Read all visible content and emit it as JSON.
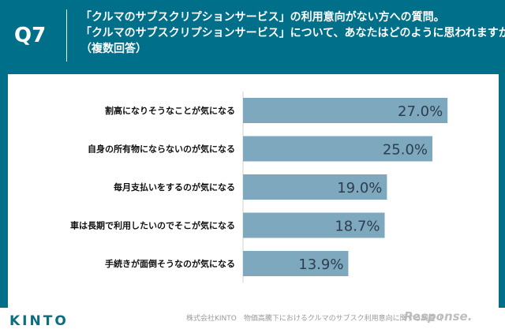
{
  "header": {
    "question_number": "Q7",
    "lines": [
      "「クルマのサブスクリプションサービス」の利用意向がない方への質問。",
      "「クルマのサブスクリプションサービス」について、あなたはどのように思われますか。",
      "（複数回答）"
    ]
  },
  "footer": {
    "logo": "KINTO",
    "source": "株式会社KINTO　物価高騰下におけるクルマのサブスク利用意向に関する調査（",
    "watermark": "Response."
  },
  "colors": {
    "header_bg": "#00708a",
    "bar": "#7ea8bd",
    "value_text": "#2c3e50",
    "label_text": "#111111"
  },
  "chart_data": {
    "type": "bar",
    "orientation": "horizontal",
    "title": "",
    "xlabel": "",
    "ylabel": "",
    "xlim": [
      0,
      30
    ],
    "grid": false,
    "categories": [
      "割高になりそうなことが気になる",
      "自身の所有物にならないのが気になる",
      "毎月支払いをするのが気になる",
      "車は長期で利用したいのでそこが気になる",
      "手続きが面倒そうなのが気になる"
    ],
    "values": [
      27.0,
      25.0,
      19.0,
      18.7,
      13.9
    ],
    "value_labels": [
      "27.0%",
      "25.0%",
      "19.0%",
      "18.7%",
      "13.9%"
    ]
  }
}
